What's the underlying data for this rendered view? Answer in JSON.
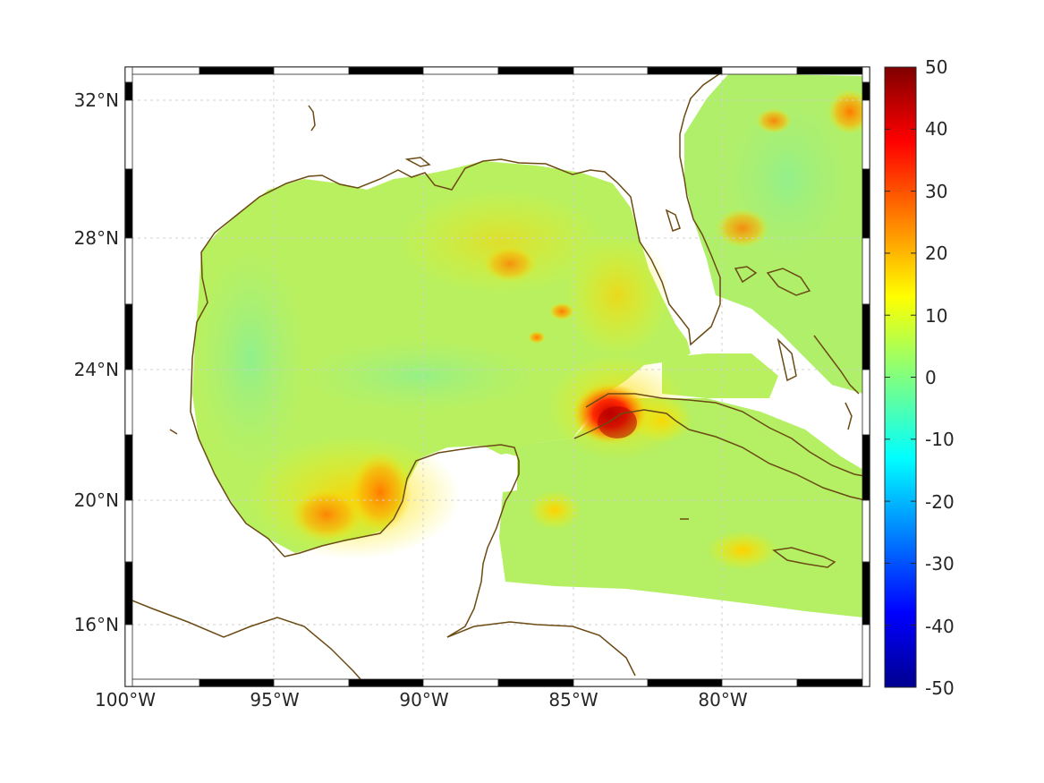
{
  "map": {
    "lat_ticks": [
      "32°N",
      "28°N",
      "24°N",
      "20°N",
      "16°N"
    ],
    "lon_ticks": [
      "100°W",
      "95°W",
      "90°W",
      "85°W",
      "80°W"
    ]
  },
  "colorbar": {
    "ticks": [
      "50",
      "40",
      "30",
      "20",
      "10",
      "0",
      "-10",
      "-20",
      "-30",
      "-40",
      "-50"
    ],
    "colormap": "jet",
    "range": [
      -50,
      50
    ]
  },
  "colors": {
    "coastline": "#6b4a14",
    "grid": "#d0d0d0",
    "field_base": "#b8f060",
    "warm_high": "#e01010",
    "warm_mid": "#ff8c00"
  },
  "chart_data": {
    "type": "heatmap",
    "title": "",
    "xlabel": "",
    "ylabel": "",
    "xlim_deg": [
      -100,
      -75
    ],
    "ylim_deg": [
      14.3,
      33
    ],
    "zlim": [
      -50,
      50
    ],
    "background_value": 5,
    "hotspots": [
      {
        "lon": -83.6,
        "lat": 22.6,
        "value": 48
      },
      {
        "lon": -91.5,
        "lat": 19.8,
        "value": 25
      },
      {
        "lon": -93.3,
        "lat": 19.6,
        "value": 20
      },
      {
        "lon": -84.5,
        "lat": 25.8,
        "value": 22
      },
      {
        "lon": -87.8,
        "lat": 27.5,
        "value": 15
      },
      {
        "lon": -80.0,
        "lat": 28.3,
        "value": 20
      },
      {
        "lon": -75.2,
        "lat": 32.1,
        "value": 22
      },
      {
        "lon": -79.5,
        "lat": 18.3,
        "value": 15
      },
      {
        "lon": -85.0,
        "lat": 19.2,
        "value": 14
      }
    ]
  }
}
